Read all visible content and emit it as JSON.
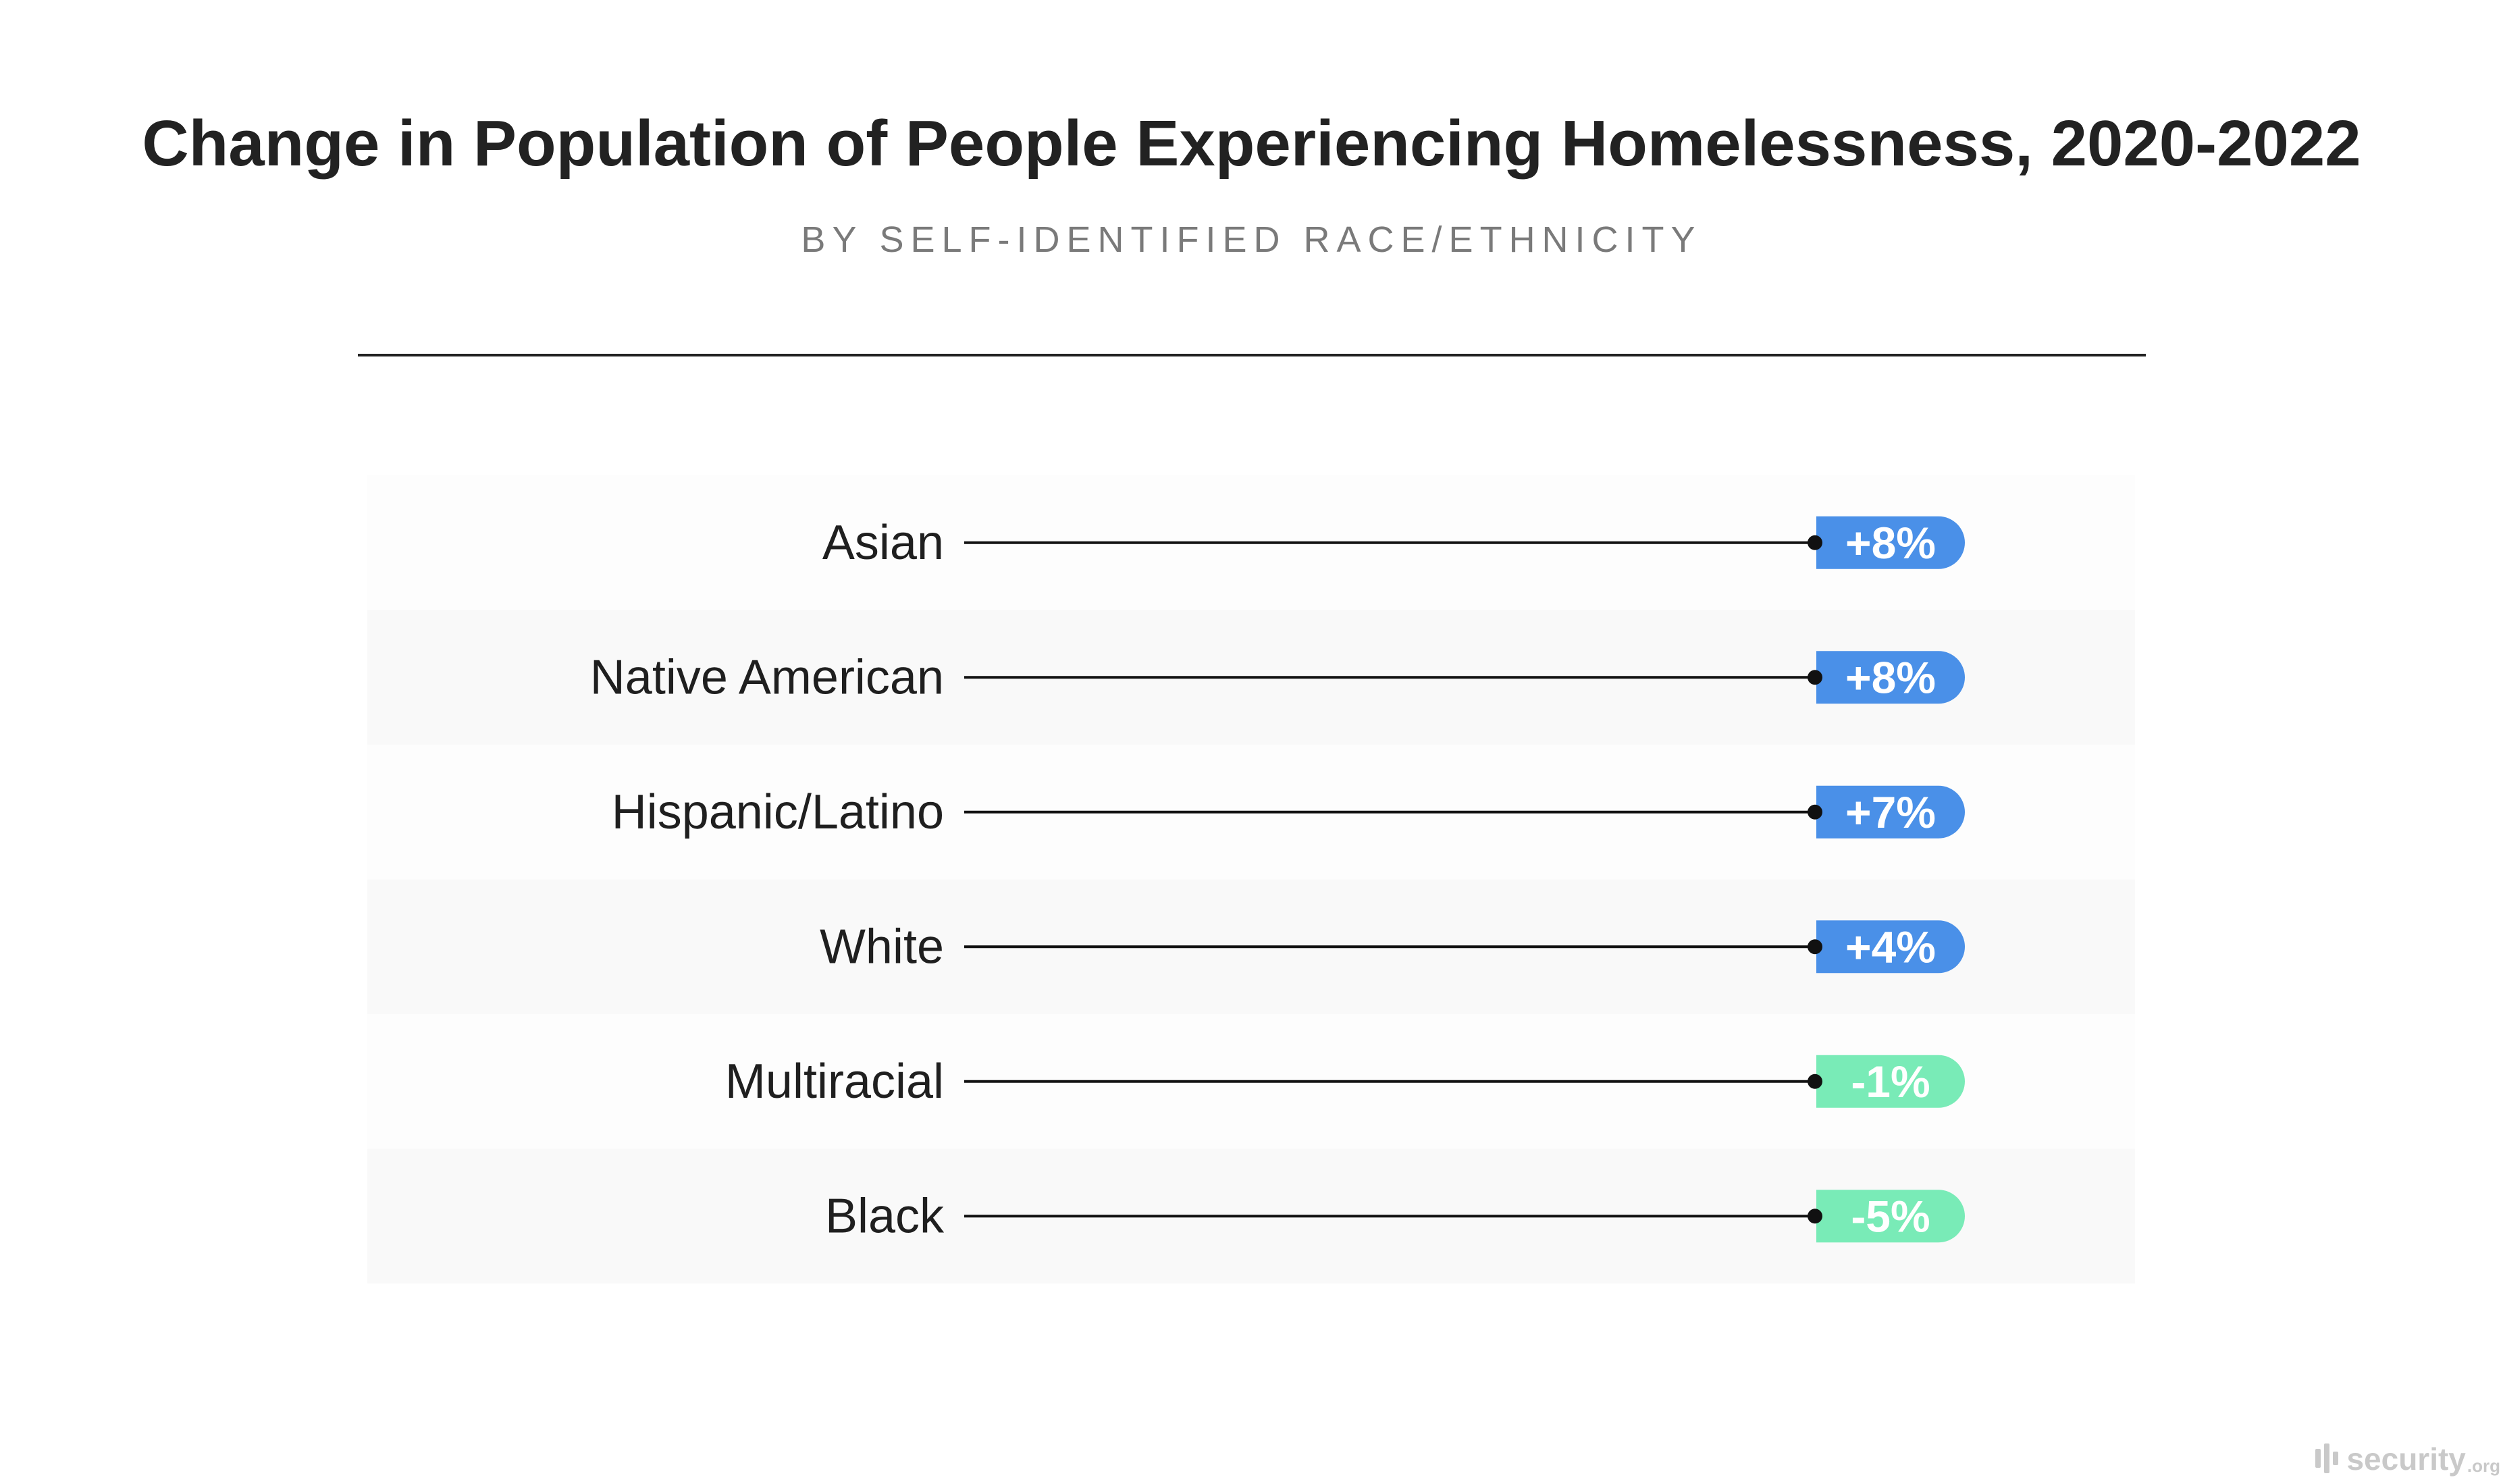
{
  "chart_data": {
    "type": "bar",
    "title": "Change in Population of People Experiencing Homelessness, 2020-2022",
    "subtitle": "BY SELF-IDENTIFIED RACE/ETHNICITY",
    "categories": [
      "Asian",
      "Native American",
      "Hispanic/Latino",
      "White",
      "Multiracial",
      "Black"
    ],
    "values": [
      8,
      8,
      7,
      4,
      -1,
      -5
    ],
    "value_labels": [
      "+8%",
      "+8%",
      "+7%",
      "+4%",
      "-1%",
      "-5%"
    ],
    "unit": "%",
    "orientation": "horizontal",
    "grid": false,
    "colors": {
      "positive": "#4a90e8",
      "negative": "#79ebb7",
      "row_alt_a": "#fdfdfd",
      "row_alt_b": "#f9f9f9",
      "line": "#111111"
    }
  },
  "brand": {
    "logo_icon": "security-org-logo-icon",
    "name": "security",
    "tld": ".org"
  }
}
